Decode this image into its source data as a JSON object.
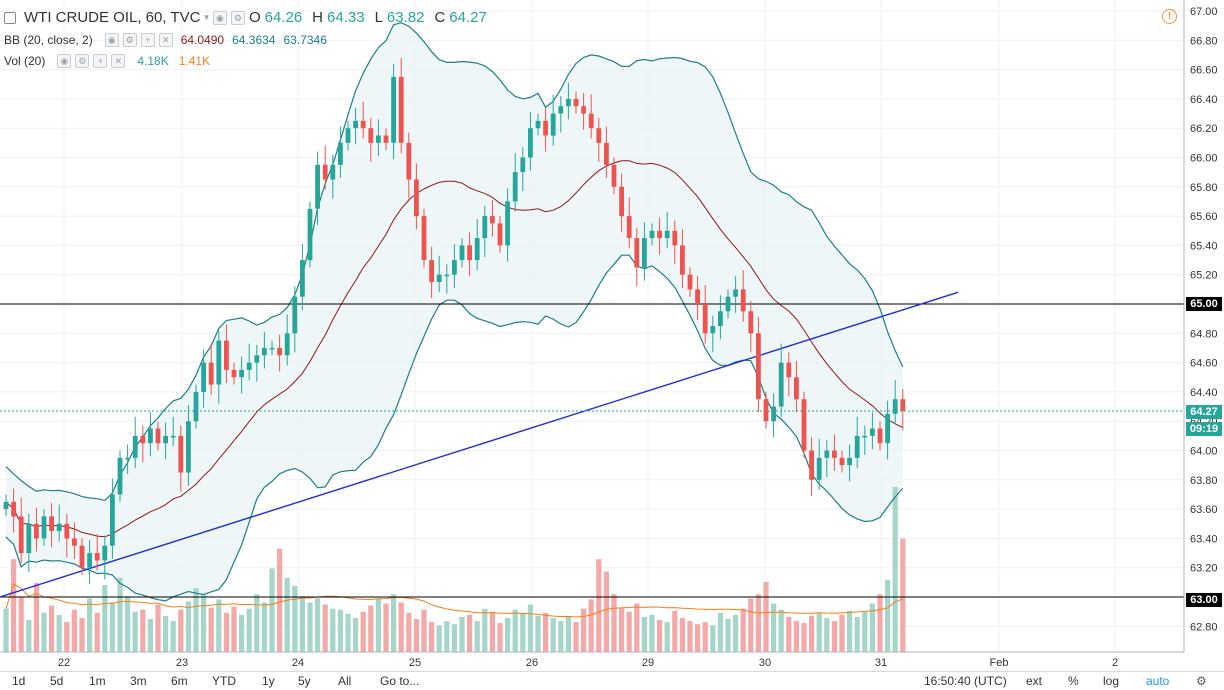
{
  "header": {
    "symbol": "WTI CRUDE OIL, 60, TVC",
    "o_label": "O",
    "o_value": "64.26",
    "h_label": "H",
    "h_value": "64.33",
    "l_label": "L",
    "l_value": "63.82",
    "c_label": "C",
    "c_value": "64.27"
  },
  "indicators": {
    "bb_label": "BB (20, close, 2)",
    "bb_values": [
      "64.0490",
      "64.3634",
      "63.7346"
    ],
    "vol_label": "Vol (20)",
    "vol_values": [
      "4.18K",
      "1.41K"
    ]
  },
  "price_tags": {
    "current": "64.27",
    "countdown": "09:19",
    "level_high": "65.00",
    "level_low": "63.00"
  },
  "toolbar": {
    "ranges": [
      "1d",
      "5d",
      "1m",
      "3m",
      "6m",
      "YTD",
      "1y",
      "5y",
      "All"
    ],
    "goto": "Go to...",
    "clock": "16:50:40 (UTC)",
    "ext": "ext",
    "percent": "%",
    "log": "log",
    "auto": "auto"
  },
  "colors": {
    "up": "#26a69a",
    "down": "#ef5350",
    "bb_band": "#1e7f85",
    "bb_basis": "#8b1a1a",
    "trendline": "#1f2fd6",
    "vol_ma": "#f57f17",
    "accent": "#f7931e"
  },
  "chart_data": {
    "type": "candlestick",
    "title": "WTI CRUDE OIL, 60, TVC",
    "y_axis": {
      "min": 62.7,
      "max": 67.0,
      "ticks": [
        62.8,
        63.0,
        63.2,
        63.4,
        63.6,
        63.8,
        64.0,
        64.2,
        64.4,
        64.6,
        64.8,
        65.0,
        65.2,
        65.4,
        65.6,
        65.8,
        66.0,
        66.2,
        66.4,
        66.6,
        66.8,
        67.0
      ]
    },
    "x_labels": [
      "22",
      "23",
      "24",
      "25",
      "26",
      "29",
      "30",
      "31",
      "Feb",
      "2"
    ],
    "horizontal_levels": [
      65.0,
      63.0
    ],
    "current_price": 64.27,
    "trendline": {
      "start": {
        "day": "22",
        "price": 63.0
      },
      "end": {
        "day": "31",
        "price": 65.08
      }
    },
    "close_series": [
      63.65,
      63.55,
      63.3,
      63.5,
      63.4,
      63.55,
      63.45,
      63.5,
      63.4,
      63.35,
      63.2,
      63.3,
      63.25,
      63.35,
      63.7,
      63.95,
      63.95,
      64.1,
      64.05,
      64.15,
      64.05,
      64.1,
      64.1,
      63.85,
      64.2,
      64.4,
      64.6,
      64.45,
      64.75,
      64.55,
      64.5,
      64.55,
      64.6,
      64.65,
      64.7,
      64.7,
      64.65,
      64.8,
      65.05,
      65.3,
      65.65,
      65.95,
      65.85,
      65.95,
      66.1,
      66.2,
      66.25,
      66.2,
      66.1,
      66.15,
      66.1,
      66.55,
      66.1,
      65.85,
      65.6,
      65.3,
      65.15,
      65.2,
      65.2,
      65.3,
      65.4,
      65.3,
      65.45,
      65.6,
      65.55,
      65.4,
      65.7,
      65.9,
      66.0,
      66.2,
      66.25,
      66.15,
      66.3,
      66.35,
      66.4,
      66.35,
      66.3,
      66.2,
      66.1,
      65.95,
      65.8,
      65.6,
      65.45,
      65.25,
      65.45,
      65.5,
      65.45,
      65.5,
      65.4,
      65.2,
      65.1,
      65.0,
      64.8,
      64.85,
      64.95,
      65.05,
      65.1,
      64.95,
      64.8,
      64.35,
      64.2,
      64.3,
      64.6,
      64.5,
      64.35,
      64.0,
      63.8,
      63.95,
      64.0,
      63.95,
      63.9,
      63.95,
      64.1,
      64.1,
      64.15,
      64.05,
      64.25,
      64.35,
      64.27
    ],
    "volume_series": [
      420,
      900,
      530,
      310,
      670,
      380,
      450,
      360,
      290,
      410,
      330,
      520,
      380,
      650,
      480,
      720,
      540,
      390,
      410,
      320,
      460,
      350,
      300,
      410,
      490,
      620,
      550,
      430,
      510,
      380,
      440,
      360,
      420,
      560,
      480,
      810,
      1000,
      720,
      640,
      540,
      480,
      520,
      460,
      420,
      410,
      370,
      330,
      390,
      450,
      520,
      470,
      560,
      480,
      380,
      320,
      410,
      290,
      260,
      300,
      270,
      340,
      360,
      300,
      420,
      390,
      280,
      330,
      410,
      380,
      460,
      350,
      380,
      330,
      300,
      340,
      290,
      420,
      510,
      900,
      780,
      560,
      430,
      390,
      470,
      340,
      360,
      310,
      290,
      400,
      330,
      300,
      270,
      290,
      260,
      380,
      320,
      360,
      420,
      520,
      560,
      680,
      470,
      410,
      340,
      300,
      280,
      350,
      380,
      330,
      300,
      360,
      400,
      340,
      390,
      470,
      560,
      700,
      1600,
      1100
    ]
  }
}
